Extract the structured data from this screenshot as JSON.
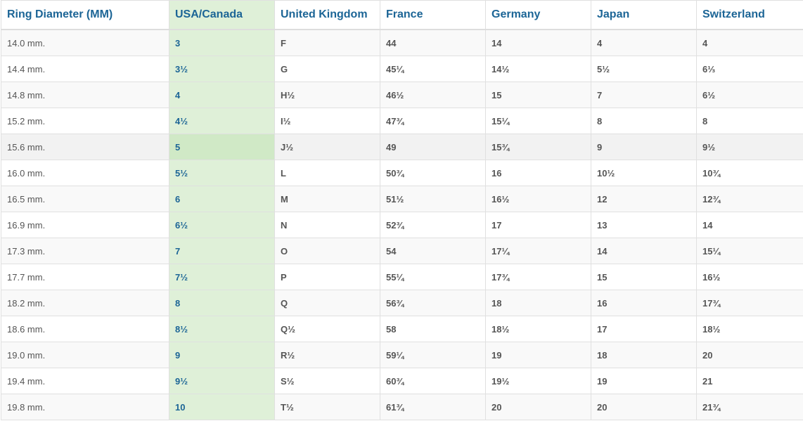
{
  "columns": [
    "Ring Diameter (MM)",
    "USA/Canada",
    "United Kingdom",
    "France",
    "Germany",
    "Japan",
    "Switzerland"
  ],
  "highlight_color": "#dff0d8",
  "header_color": "#1c6596",
  "hovered_row": 4,
  "rows": [
    [
      "14.0 mm.",
      "3",
      "F",
      "44",
      "14",
      "4",
      "4"
    ],
    [
      "14.4 mm.",
      "3½",
      "G",
      "45¼",
      "14½",
      "5½",
      "6⅓"
    ],
    [
      "14.8 mm.",
      "4",
      "H½",
      "46½",
      "15",
      "7",
      "6½"
    ],
    [
      "15.2 mm.",
      "4½",
      "I½",
      "47¾",
      "15¼",
      "8",
      "8"
    ],
    [
      "15.6 mm.",
      "5",
      "J½",
      "49",
      "15¾",
      "9",
      "9½"
    ],
    [
      "16.0 mm.",
      "5½",
      "L",
      "50¾",
      "16",
      "10½",
      "10¾"
    ],
    [
      "16.5 mm.",
      "6",
      "M",
      "51½",
      "16½",
      "12",
      "12¾"
    ],
    [
      "16.9 mm.",
      "6½",
      "N",
      "52¾",
      "17",
      "13",
      "14"
    ],
    [
      "17.3 mm.",
      "7",
      "O",
      "54",
      "17¼",
      "14",
      "15¼"
    ],
    [
      "17.7 mm.",
      "7½",
      "P",
      "55¼",
      "17¾",
      "15",
      "16½"
    ],
    [
      "18.2 mm.",
      "8",
      "Q",
      "56¾",
      "18",
      "16",
      "17¾"
    ],
    [
      "18.6 mm.",
      "8½",
      "Q½",
      "58",
      "18½",
      "17",
      "18½"
    ],
    [
      "19.0 mm.",
      "9",
      "R½",
      "59¼",
      "19",
      "18",
      "20"
    ],
    [
      "19.4 mm.",
      "9½",
      "S½",
      "60¾",
      "19½",
      "19",
      "21"
    ],
    [
      "19.8 mm.",
      "10",
      "T½",
      "61¾",
      "20",
      "20",
      "21¾"
    ]
  ]
}
